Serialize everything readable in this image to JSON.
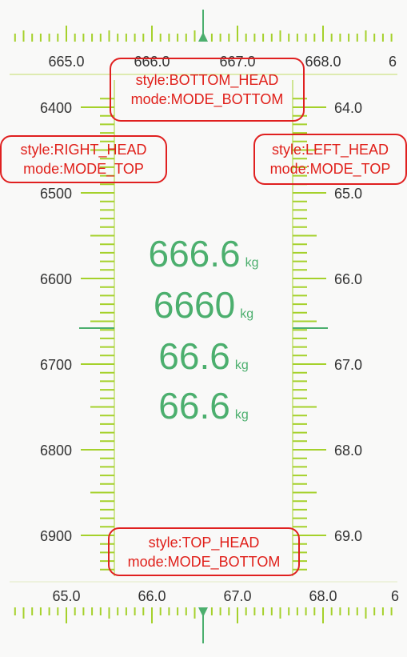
{
  "colors": {
    "ruler_tick": "#a5d12b",
    "indicator": "#4caf6e",
    "annotation": "#e0201a",
    "background": "#f9f9f8",
    "ruler_text": "#333333"
  },
  "top_ruler": {
    "labels": [
      "665.0",
      "666.0",
      "667.0",
      "668.0",
      "6"
    ]
  },
  "bottom_ruler": {
    "labels": [
      "65.0",
      "66.0",
      "67.0",
      "68.0",
      "6"
    ]
  },
  "left_ruler": {
    "labels": [
      "6400",
      "6500",
      "6600",
      "6700",
      "6800",
      "6900"
    ]
  },
  "right_ruler": {
    "labels": [
      "64.0",
      "65.0",
      "66.0",
      "67.0",
      "68.0",
      "69.0"
    ]
  },
  "readouts": [
    {
      "value": "666.6",
      "unit": "kg"
    },
    {
      "value": "6660",
      "unit": "kg"
    },
    {
      "value": "66.6",
      "unit": "kg"
    },
    {
      "value": "66.6",
      "unit": "kg"
    }
  ],
  "annotations": {
    "top": {
      "style": "style:BOTTOM_HEAD",
      "mode": "mode:MODE_BOTTOM"
    },
    "left": {
      "style": "style:RIGHT_HEAD",
      "mode": "mode:MODE_TOP"
    },
    "right": {
      "style": "style:LEFT_HEAD",
      "mode": "mode:MODE_TOP"
    },
    "bottom": {
      "style": "style:TOP_HEAD",
      "mode": "mode:MODE_BOTTOM"
    }
  }
}
